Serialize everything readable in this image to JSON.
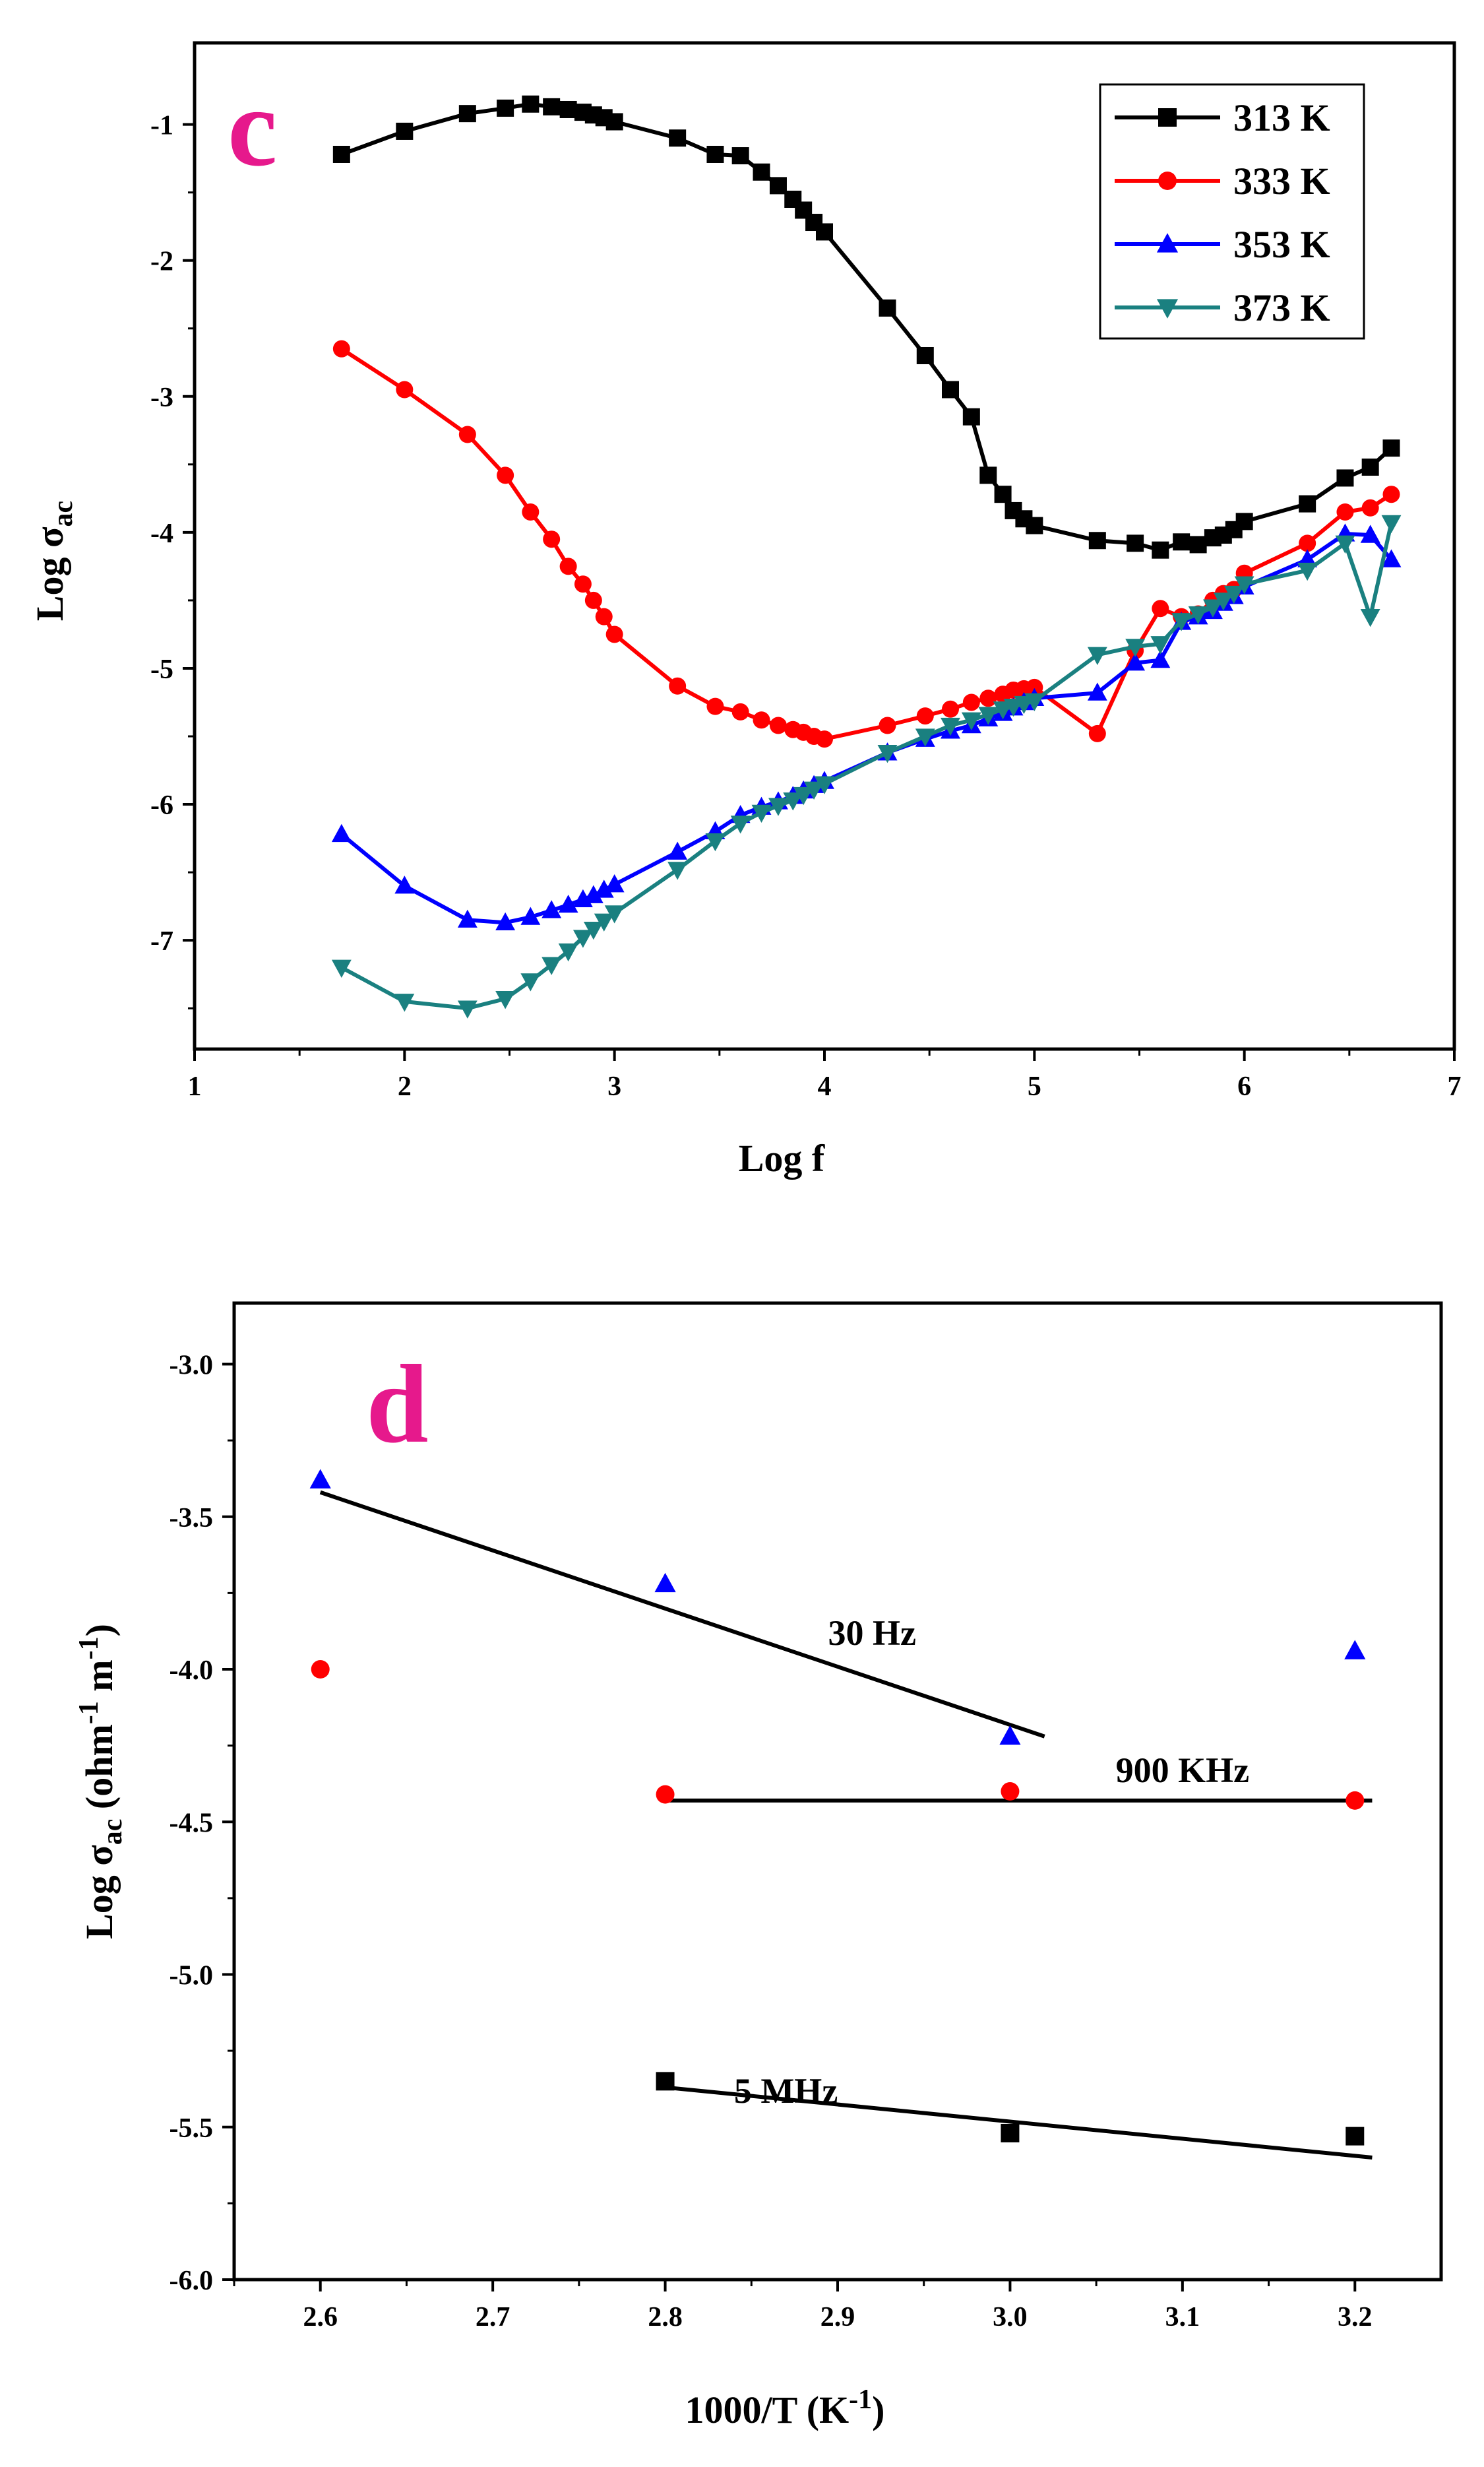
{
  "chart_data": [
    {
      "type": "line",
      "panel_label": "c",
      "xlabel": "Log f",
      "ylabel_main": "Log σ",
      "ylabel_sub": "ac",
      "xlim": [
        1,
        7
      ],
      "ylim": [
        -7.8,
        -0.4
      ],
      "xticks": [
        "1",
        "2",
        "3",
        "4",
        "5",
        "6",
        "7"
      ],
      "yticks": [
        "-1",
        "-2",
        "-3",
        "-4",
        "-5",
        "-6",
        "-7"
      ],
      "legend_position": "top-right",
      "series": [
        {
          "name": "313 K",
          "color": "#000000",
          "marker": "square",
          "x": [
            1.7,
            2.0,
            2.3,
            2.48,
            2.6,
            2.7,
            2.78,
            2.85,
            2.9,
            2.95,
            3.0,
            3.3,
            3.48,
            3.6,
            3.7,
            3.78,
            3.85,
            3.9,
            3.95,
            4.0,
            4.3,
            4.48,
            4.6,
            4.7,
            4.78,
            4.85,
            4.9,
            4.95,
            5.0,
            5.3,
            5.48,
            5.6,
            5.7,
            5.78,
            5.85,
            5.9,
            5.95,
            6.0,
            6.3,
            6.48,
            6.6,
            6.7
          ],
          "y": [
            -1.22,
            -1.05,
            -0.92,
            -0.88,
            -0.85,
            -0.87,
            -0.89,
            -0.91,
            -0.93,
            -0.95,
            -0.98,
            -1.1,
            -1.22,
            -1.23,
            -1.35,
            -1.45,
            -1.55,
            -1.63,
            -1.72,
            -1.79,
            -2.35,
            -2.7,
            -2.95,
            -3.15,
            -3.58,
            -3.72,
            -3.84,
            -3.9,
            -3.95,
            -4.06,
            -4.08,
            -4.13,
            -4.07,
            -4.09,
            -4.04,
            -4.02,
            -3.98,
            -3.92,
            -3.79,
            -3.6,
            -3.52,
            -3.38
          ]
        },
        {
          "name": "333 K",
          "color": "#ff0000",
          "marker": "circle",
          "x": [
            1.7,
            2.0,
            2.3,
            2.48,
            2.6,
            2.7,
            2.78,
            2.85,
            2.9,
            2.95,
            3.0,
            3.3,
            3.48,
            3.6,
            3.7,
            3.78,
            3.85,
            3.9,
            3.95,
            4.0,
            4.3,
            4.48,
            4.6,
            4.7,
            4.78,
            4.85,
            4.9,
            4.95,
            5.0,
            5.3,
            5.48,
            5.6,
            5.7,
            5.78,
            5.85,
            5.9,
            5.95,
            6.0,
            6.3,
            6.48,
            6.6,
            6.7
          ],
          "y": [
            -2.65,
            -2.95,
            -3.28,
            -3.58,
            -3.85,
            -4.05,
            -4.25,
            -4.38,
            -4.5,
            -4.62,
            -4.75,
            -5.13,
            -5.28,
            -5.32,
            -5.38,
            -5.42,
            -5.45,
            -5.47,
            -5.5,
            -5.52,
            -5.42,
            -5.35,
            -5.3,
            -5.25,
            -5.22,
            -5.19,
            -5.16,
            -5.15,
            -5.14,
            -5.48,
            -4.87,
            -4.56,
            -4.62,
            -4.6,
            -4.5,
            -4.45,
            -4.42,
            -4.3,
            -4.08,
            -3.85,
            -3.82,
            -3.72
          ]
        },
        {
          "name": "353 K",
          "color": "#0000ff",
          "marker": "triangle-up",
          "x": [
            1.7,
            2.0,
            2.3,
            2.48,
            2.6,
            2.7,
            2.78,
            2.85,
            2.9,
            2.95,
            3.0,
            3.3,
            3.48,
            3.6,
            3.7,
            3.78,
            3.85,
            3.9,
            3.95,
            4.0,
            4.3,
            4.48,
            4.6,
            4.7,
            4.78,
            4.85,
            4.9,
            4.95,
            5.0,
            5.3,
            5.48,
            5.6,
            5.7,
            5.78,
            5.85,
            5.9,
            5.95,
            6.0,
            6.3,
            6.48,
            6.6,
            6.7
          ],
          "y": [
            -6.22,
            -6.6,
            -6.85,
            -6.87,
            -6.83,
            -6.78,
            -6.74,
            -6.7,
            -6.67,
            -6.63,
            -6.59,
            -6.35,
            -6.2,
            -6.08,
            -6.02,
            -5.98,
            -5.94,
            -5.9,
            -5.86,
            -5.83,
            -5.62,
            -5.52,
            -5.46,
            -5.42,
            -5.37,
            -5.33,
            -5.29,
            -5.25,
            -5.22,
            -5.18,
            -4.96,
            -4.94,
            -4.66,
            -4.62,
            -4.58,
            -4.52,
            -4.47,
            -4.4,
            -4.2,
            -4.01,
            -4.02,
            -4.2
          ]
        },
        {
          "name": "373 K",
          "color": "#1a8080",
          "marker": "triangle-down",
          "x": [
            1.7,
            2.0,
            2.3,
            2.48,
            2.6,
            2.7,
            2.78,
            2.85,
            2.9,
            2.95,
            3.0,
            3.3,
            3.48,
            3.6,
            3.7,
            3.78,
            3.85,
            3.9,
            3.95,
            4.0,
            4.3,
            4.48,
            4.6,
            4.7,
            4.78,
            4.85,
            4.9,
            4.95,
            5.0,
            5.3,
            5.48,
            5.6,
            5.7,
            5.78,
            5.85,
            5.9,
            5.95,
            6.0,
            6.3,
            6.48,
            6.6,
            6.7
          ],
          "y": [
            -7.2,
            -7.45,
            -7.5,
            -7.43,
            -7.3,
            -7.18,
            -7.08,
            -6.98,
            -6.92,
            -6.86,
            -6.8,
            -6.48,
            -6.27,
            -6.14,
            -6.06,
            -6.01,
            -5.97,
            -5.93,
            -5.89,
            -5.85,
            -5.62,
            -5.5,
            -5.42,
            -5.38,
            -5.34,
            -5.3,
            -5.28,
            -5.26,
            -5.24,
            -4.9,
            -4.84,
            -4.82,
            -4.65,
            -4.6,
            -4.55,
            -4.5,
            -4.45,
            -4.38,
            -4.28,
            -4.08,
            -4.62,
            -3.93
          ]
        }
      ]
    },
    {
      "type": "scatter",
      "panel_label": "d",
      "xlabel_main": "1000/T (K",
      "xlabel_sup": "-1",
      "xlabel_end": ")",
      "ylabel_main": "Log σ",
      "ylabel_sub": "ac",
      "ylabel_unit_pre": " (ohm",
      "ylabel_sup1": "-1",
      "ylabel_unit_mid": " m",
      "ylabel_sup2": "-1",
      "ylabel_unit_end": ")",
      "xlim": [
        2.55,
        3.25
      ],
      "ylim": [
        -6.0,
        -2.8
      ],
      "xticks": [
        "2.6",
        "2.7",
        "2.8",
        "2.9",
        "3.0",
        "3.1",
        "3.2"
      ],
      "yticks": [
        "-3.0",
        "-3.5",
        "-4.0",
        "-4.5",
        "-5.0",
        "-5.5",
        "-6.0"
      ],
      "series": [
        {
          "name": "30 Hz",
          "color": "#0000ff",
          "marker": "triangle-up",
          "x": [
            2.6,
            2.8,
            3.0,
            3.2
          ],
          "y": [
            -3.38,
            -3.72,
            -4.22,
            -3.94
          ],
          "fit": {
            "x": [
              2.6,
              3.02
            ],
            "y": [
              -3.42,
              -4.22
            ]
          }
        },
        {
          "name": "900 KHz",
          "color": "#ff0000",
          "marker": "circle",
          "x": [
            2.6,
            2.8,
            3.0,
            3.2
          ],
          "y": [
            -4.0,
            -4.41,
            -4.4,
            -4.43
          ],
          "fit": {
            "x": [
              2.8,
              3.21
            ],
            "y": [
              -4.43,
              -4.43
            ]
          }
        },
        {
          "name": "5 MHz",
          "color": "#000000",
          "marker": "square",
          "x": [
            2.8,
            3.0,
            3.2
          ],
          "y": [
            -5.35,
            -5.52,
            -5.53
          ],
          "fit": {
            "x": [
              2.8,
              3.21
            ],
            "y": [
              -5.37,
              -5.6
            ]
          }
        }
      ],
      "annotations": [
        {
          "text": "30 Hz",
          "x": 2.92,
          "y": -3.92
        },
        {
          "text": "900 KHz",
          "x": 3.1,
          "y": -4.37
        },
        {
          "text": "5 MHz",
          "x": 2.87,
          "y": -5.42
        }
      ]
    }
  ]
}
